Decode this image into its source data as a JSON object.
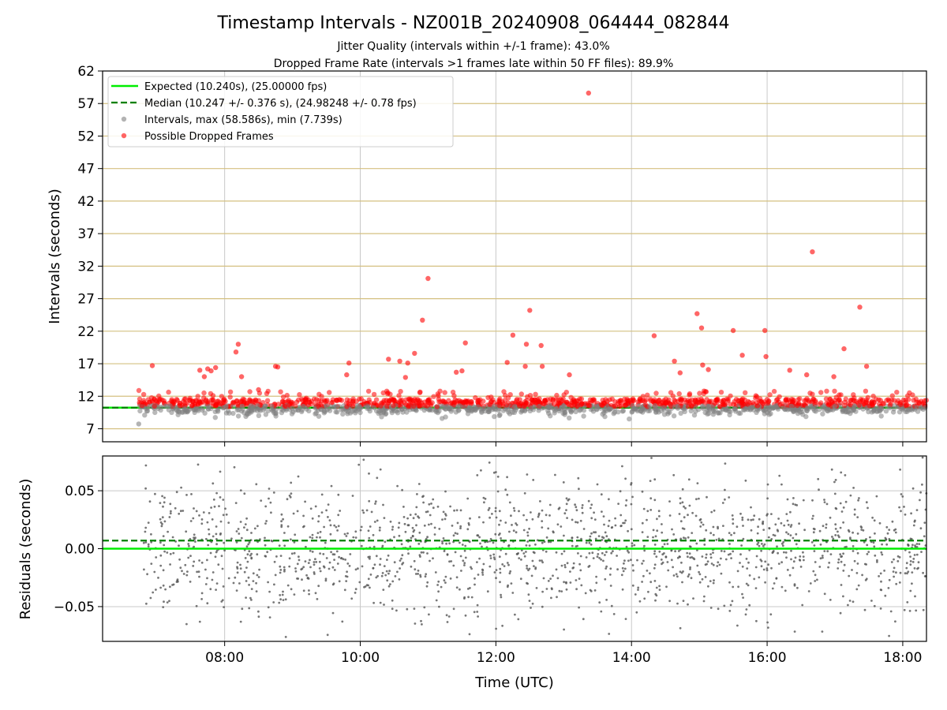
{
  "figure": {
    "title": "Timestamp Intervals - NZ001B_20240908_064444_082844",
    "subtitle_1": "Jitter Quality (intervals within +/-1 frame): 43.0%",
    "subtitle_2": "Dropped Frame Rate (intervals >1 frames late within 50 FF files): 89.9%"
  },
  "colors": {
    "expected": "#00ee00",
    "median": "#008000",
    "intervals": "#808080",
    "dropped": "#ff0000",
    "hgrid": "#d4c080",
    "vgrid": "#c8c8c8"
  },
  "chart_data": [
    {
      "type": "scatter",
      "panel": "top",
      "ylabel": "Intervals (seconds)",
      "ylim": [
        5,
        62
      ],
      "xlim": [
        "06:12",
        "18:21"
      ],
      "y_ticks": [
        7,
        12,
        17,
        22,
        27,
        32,
        37,
        42,
        47,
        52,
        57,
        62
      ],
      "grid": "on",
      "legend_position": "top-left",
      "legend": [
        "Expected (10.240s), (25.00000 fps)",
        "Median (10.247 +/- 0.376 s), (24.98248 +/- 0.78 fps)",
        "Intervals, max (58.586s), min (7.739s)",
        "Possible Dropped Frames"
      ],
      "expected_value": 10.24,
      "median_value": 10.247,
      "data_start": "06:44",
      "data_end": "18:21",
      "intervals_range": [
        7.739,
        58.586
      ],
      "series": [
        {
          "name": "Possible Dropped Frames",
          "note_points_outliers": true,
          "points": [
            [
              "06:56",
              16.7
            ],
            [
              "07:38",
              16.0
            ],
            [
              "07:42",
              15.0
            ],
            [
              "07:45",
              16.2
            ],
            [
              "07:48",
              15.9
            ],
            [
              "07:52",
              16.4
            ],
            [
              "08:10",
              18.8
            ],
            [
              "08:12",
              20.0
            ],
            [
              "08:15",
              15.0
            ],
            [
              "08:30",
              13.0
            ],
            [
              "08:45",
              16.6
            ],
            [
              "08:47",
              16.5
            ],
            [
              "09:50",
              17.1
            ],
            [
              "09:48",
              15.3
            ],
            [
              "10:25",
              17.7
            ],
            [
              "10:35",
              17.4
            ],
            [
              "10:42",
              17.1
            ],
            [
              "10:40",
              14.9
            ],
            [
              "10:48",
              18.6
            ],
            [
              "10:55",
              23.7
            ],
            [
              "11:00",
              30.1
            ],
            [
              "11:25",
              15.7
            ],
            [
              "11:30",
              15.9
            ],
            [
              "11:33",
              20.2
            ],
            [
              "12:10",
              17.2
            ],
            [
              "12:15",
              21.4
            ],
            [
              "12:26",
              16.6
            ],
            [
              "12:27",
              20.0
            ],
            [
              "12:30",
              25.2
            ],
            [
              "12:40",
              19.8
            ],
            [
              "12:41",
              16.6
            ],
            [
              "13:05",
              15.3
            ],
            [
              "13:22",
              58.6
            ],
            [
              "14:20",
              21.3
            ],
            [
              "14:38",
              17.4
            ],
            [
              "14:43",
              15.6
            ],
            [
              "14:58",
              24.7
            ],
            [
              "15:02",
              22.5
            ],
            [
              "15:03",
              16.8
            ],
            [
              "15:08",
              16.1
            ],
            [
              "15:30",
              22.1
            ],
            [
              "15:38",
              18.3
            ],
            [
              "15:58",
              22.1
            ],
            [
              "15:59",
              18.1
            ],
            [
              "16:20",
              16.0
            ],
            [
              "16:35",
              15.3
            ],
            [
              "16:40",
              34.2
            ],
            [
              "16:59",
              15.0
            ],
            [
              "17:08",
              19.3
            ],
            [
              "17:22",
              25.7
            ],
            [
              "17:28",
              16.6
            ]
          ]
        }
      ]
    },
    {
      "type": "scatter",
      "panel": "bottom",
      "xlabel": "Time (UTC)",
      "ylabel": "Residuals (seconds)",
      "ylim": [
        -0.08,
        0.08
      ],
      "y_tick_labels": [
        "−0.05",
        "0.00",
        "0.05"
      ],
      "y_tick_values": [
        -0.05,
        0.0,
        0.05
      ],
      "x_tick_labels": [
        "08:00",
        "10:00",
        "12:00",
        "14:00",
        "16:00",
        "18:00"
      ],
      "expected_value": 0.0,
      "median_value": 0.007,
      "grid": "on"
    }
  ]
}
